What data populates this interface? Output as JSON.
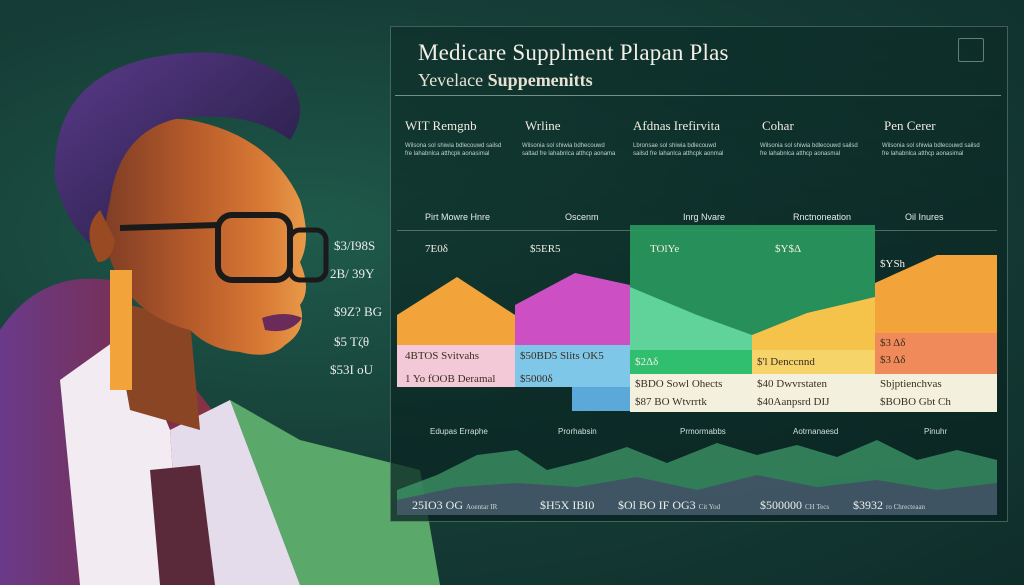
{
  "panel": {
    "title": "Medicare Supplment Plapan Plas",
    "subtitle_prefix": "Yevelace",
    "subtitle_bold": "Suppemenitts"
  },
  "columns": [
    {
      "heading": "WIT Remgnb",
      "text": "Wilsona sol shiwia bdlecouwd sailsd fre lahabnlca atthcpk aonasimal"
    },
    {
      "heading": "Wrline",
      "text": "Wilsonia sol shiwia bdhecouwd saltad fre lahabnlca atthcp aonama"
    },
    {
      "heading": "Afdnas Irefirvita",
      "text": "Lbronsae sol shiwia bdlecouwd sailsd fre lahanlca atthcpk aonmal"
    },
    {
      "heading": "Cohar",
      "text": "Wilsonia sol shiwia bdlecouwd sailsd fre lahabnlca atthcp aonasmal"
    },
    {
      "heading": "Pen Cerer",
      "text": "Wilsonia sol shiwia bdlecouwd sailsd fre lahabnlca atthcp aonasimal"
    }
  ],
  "bands": [
    "Pirt Mowre Hnre",
    "Oscenm",
    "Inrg Nvare",
    "Rnctnoneation",
    "Oil Inures"
  ],
  "top_values": [
    "7E0δ",
    "$5ER5",
    "TOlYe",
    "$Y$Δ",
    "$YSh"
  ],
  "mid_values": [
    "4BTOS Svitvahs",
    "$50BD5 Slits OK5",
    "$2Δδ",
    "$'l Denccnnd",
    "$3 Δδ"
  ],
  "low_values": [
    "1 Yo fOOB Deramal",
    "$5000δ",
    "$2Δδ",
    "$3 Δδ"
  ],
  "row3": [
    "$BDO Sowl Ohects",
    "$87 BO Wtvrrtk",
    "$40 Dwvrstaten",
    "$40Aanpsrd DIJ",
    "Sbjptienchvas",
    "$BOBO Gbt Ch"
  ],
  "side_values": [
    "$3/I98S",
    "2B/ 39Y",
    "$9Z? BG",
    "$5 Tζθ",
    "$53I oU"
  ],
  "sub_labels": [
    "Edupas Erraphe",
    "Prorhabsin",
    "Prmormabbs",
    "Aotrnanaesd",
    "Pinuhr"
  ],
  "bottom_values": [
    {
      "big": "25IO3 OG",
      "small": "Aoentar IR"
    },
    {
      "big": "$H5X IBI0",
      "small": ""
    },
    {
      "big": "$Ol BO IF OG3",
      "small": "Cit Yod"
    },
    {
      "big": "$500000",
      "small": "CH Tecs"
    },
    {
      "big": "$3932",
      "small": "ro Chrecteaan"
    }
  ],
  "colors": {
    "orange": "#f2a33a",
    "magenta": "#cc4fc4",
    "green": "#2fbf6e",
    "yellow": "#f5c24a",
    "pink": "#f4c9d7",
    "blue": "#7ec7e8"
  }
}
